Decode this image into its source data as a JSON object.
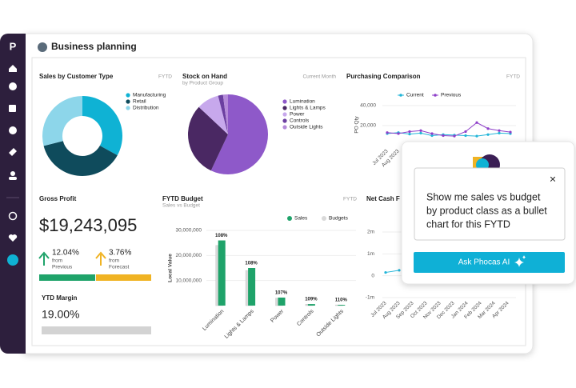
{
  "sidebar": {
    "logo": "P"
  },
  "header": {
    "title": "Business planning"
  },
  "gross_profit": {
    "title": "Gross Profit",
    "value": "$19,243,095",
    "indicators": [
      {
        "value": "12.04%",
        "lines": [
          "from",
          "Previous"
        ]
      },
      {
        "value": "3.76%",
        "lines": [
          "from",
          "Forecast"
        ]
      }
    ]
  },
  "ytd_margin": {
    "title": "YTD Margin",
    "value": "19.00%"
  },
  "popup": {
    "prompt_lines": [
      "Show me sales vs budget",
      "by product class as a bullet",
      "chart for this FYTD"
    ],
    "close": "×",
    "button": "Ask Phocas AI"
  },
  "chart_data": [
    {
      "type": "donut",
      "title": "Sales by Customer Type",
      "period": "FYTD",
      "categories": [
        "Manufacturing",
        "Retail",
        "Distribution"
      ],
      "values": [
        33,
        38,
        29
      ],
      "colors": [
        "#0fb2d4",
        "#0f4b5c",
        "#8dd6ea"
      ]
    },
    {
      "type": "pie",
      "title": "Stock on Hand",
      "subtitle": "by Product Group",
      "period": "Current Month",
      "categories": [
        "Lumination",
        "Lights & Lamps",
        "Power",
        "Controls",
        "Outside Lights"
      ],
      "values": [
        57,
        30,
        9,
        2,
        2
      ],
      "colors": [
        "#8e59c9",
        "#4a2863",
        "#c7a8ec",
        "#6b3fa0",
        "#b48ad9"
      ]
    },
    {
      "type": "line",
      "title": "Purchasing Comparison",
      "period": "FYTD",
      "y_label": "PO Qty",
      "categories": [
        "Jul 2023",
        "Aug 2023",
        null,
        null,
        null,
        null,
        null,
        null,
        null,
        null,
        null,
        null
      ],
      "series": [
        {
          "name": "Current",
          "color": "#22b5d8",
          "values": [
            12000,
            13000,
            11500,
            12500,
            10000,
            11000,
            10500,
            10000,
            9500,
            11000,
            12500,
            12000
          ]
        },
        {
          "name": "Previous",
          "color": "#8e3fc9",
          "values": [
            13000,
            12000,
            14000,
            15000,
            12000,
            10000,
            9500,
            14000,
            23000,
            17000,
            15000,
            13500
          ]
        }
      ],
      "ylim": [
        0,
        40000
      ],
      "yticks": [
        {
          "value": 20000,
          "label": "20,000"
        },
        {
          "value": 40000,
          "label": "40,000"
        }
      ]
    },
    {
      "type": "bar",
      "title": "FYTD Budget",
      "subtitle": "Sales vs Budget",
      "period": "FYTD",
      "y_label": "Local Value",
      "categories": [
        "Lumination",
        "Lights & Lamps",
        "Power",
        "Controls",
        "Outside Lights"
      ],
      "series": [
        {
          "name": "Sales",
          "color": "#1fa36a",
          "values": [
            26000000,
            15000000,
            3200000,
            600000,
            300000
          ]
        },
        {
          "name": "Budgets",
          "color": "#d9d9d9",
          "values": [
            24000000,
            14000000,
            3000000,
            550000,
            270000
          ]
        }
      ],
      "bar_labels": [
        "108%",
        "108%",
        "107%",
        "109%",
        "110%"
      ],
      "ylim": [
        0,
        30000000
      ],
      "yticks": [
        {
          "value": 10000000,
          "label": "10,000,000"
        },
        {
          "value": 20000000,
          "label": "20,000,000"
        },
        {
          "value": 30000000,
          "label": "30,000,000"
        }
      ]
    },
    {
      "type": "line",
      "title": "Net Cash Flow",
      "categories": [
        "Jul 2023",
        "Aug 2023",
        "Sep 2023",
        "Oct 2023",
        "Nov 2023",
        "Dec 2023",
        "Jan 2024",
        "Feb 2024",
        "Mar 2024",
        "Apr 2024"
      ],
      "series": [
        {
          "color": "#22b5d8",
          "values": [
            150000,
            250000,
            null,
            null,
            null,
            null,
            null,
            null,
            null,
            null
          ]
        }
      ],
      "ylim": [
        -1000000,
        2000000
      ],
      "yticks": [
        {
          "value": -1000000,
          "label": "-1m"
        },
        0,
        {
          "value": 1000000,
          "label": "1m"
        },
        {
          "value": 2000000,
          "label": "2m"
        }
      ]
    }
  ]
}
